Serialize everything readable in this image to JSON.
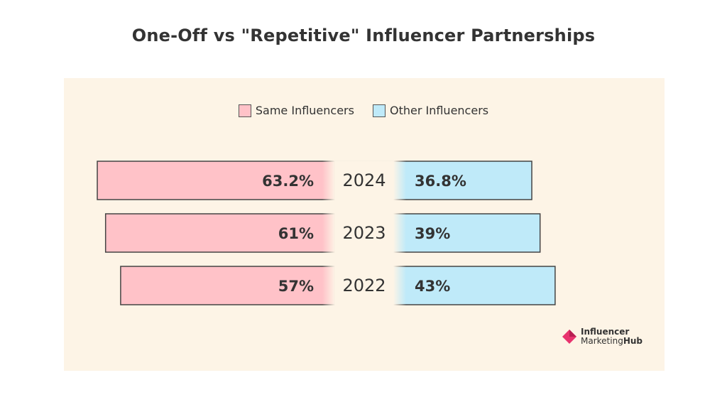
{
  "chart_data": {
    "type": "bar",
    "title": "One-Off vs \"Repetitive\" Influencer Partnerships",
    "categories": [
      "2024",
      "2023",
      "2022"
    ],
    "series": [
      {
        "name": "Same Influencers",
        "values": [
          63.2,
          61,
          57
        ],
        "labels": [
          "63.2%",
          "61%",
          "57%"
        ],
        "color": "#ffc2c8"
      },
      {
        "name": "Other Influencers",
        "values": [
          36.8,
          39,
          43
        ],
        "labels": [
          "36.8%",
          "39%",
          "43%"
        ],
        "color": "#bfeaf9"
      }
    ],
    "orientation": "diverging-horizontal",
    "xlim": [
      0,
      100
    ],
    "legend_position": "top-center",
    "grid": false
  },
  "colors": {
    "panel": "#fdf4e6",
    "bar_stroke": "#444444",
    "brand_accent": "#e8336e"
  },
  "logo": {
    "line1": "Influencer",
    "line2a": "Marketing",
    "line2b": "Hub"
  }
}
